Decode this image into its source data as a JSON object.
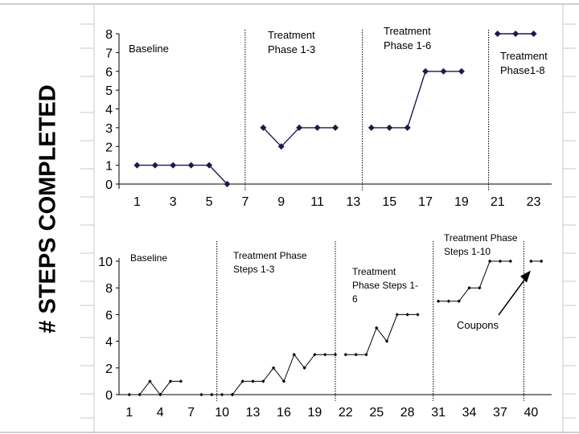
{
  "ylabel": "# STEPS COMPLETED",
  "colors": {
    "top_series": "#1a1a4e",
    "bottom_series": "#000000",
    "frame": "#a0a0a0"
  },
  "chart_data": [
    {
      "type": "line",
      "panel": "top",
      "ylim": [
        0,
        8
      ],
      "yticks": [
        "0",
        "1",
        "2",
        "3",
        "4",
        "5",
        "6",
        "7",
        "8"
      ],
      "xlim": [
        0,
        24
      ],
      "xticks": [
        1,
        3,
        5,
        7,
        9,
        11,
        13,
        15,
        17,
        19,
        21,
        23
      ],
      "xtick_labels": [
        "1",
        "3",
        "5",
        "7",
        "9",
        "11",
        "13",
        "15",
        "17",
        "19",
        "21",
        "23"
      ],
      "phase_lines": [
        7,
        13.5,
        20.5
      ],
      "phases": [
        {
          "lines": [
            "Baseline"
          ],
          "x_start": 0
        },
        {
          "lines": [
            "Treatment",
            "Phase 1-3"
          ],
          "x_start": 7
        },
        {
          "lines": [
            "Treatment",
            "Phase 1-6"
          ],
          "x_start": 13.5
        },
        {
          "lines": [
            "Treatment",
            "Phase1-8"
          ],
          "x_start": 20.5
        }
      ],
      "segments": [
        {
          "x": [
            1,
            2,
            3,
            4,
            5,
            6
          ],
          "y": [
            1,
            1,
            1,
            1,
            1,
            0
          ]
        },
        {
          "x": [
            8,
            9,
            10,
            11,
            12
          ],
          "y": [
            3,
            2,
            3,
            3,
            3
          ]
        },
        {
          "x": [
            14,
            15,
            16,
            17,
            18,
            19
          ],
          "y": [
            3,
            3,
            3,
            6,
            6,
            6
          ]
        },
        {
          "x": [
            21,
            22,
            23
          ],
          "y": [
            8,
            8,
            8
          ]
        }
      ]
    },
    {
      "type": "line",
      "panel": "bottom",
      "ylim": [
        0,
        10
      ],
      "yticks": [
        "0",
        "2",
        "4",
        "6",
        "8",
        "10"
      ],
      "xlim": [
        0,
        42
      ],
      "xticks": [
        1,
        4,
        7,
        10,
        13,
        16,
        19,
        22,
        25,
        28,
        31,
        34,
        37,
        40
      ],
      "xtick_labels": [
        "1",
        "4",
        "7",
        "10",
        "13",
        "16",
        "19",
        "22",
        "25",
        "28",
        "31",
        "34",
        "37",
        "40"
      ],
      "phase_lines": [
        9.5,
        21,
        30.5,
        39.3
      ],
      "phases": [
        {
          "lines": [
            "Baseline"
          ],
          "x_start": 0
        },
        {
          "lines": [
            "Treatment Phase",
            "Steps 1-3"
          ],
          "x_start": 9.5
        },
        {
          "lines": [
            "Treatment",
            "Phase Steps 1-",
            "6"
          ],
          "x_start": 21
        },
        {
          "lines": [
            "Treatment Phase",
            "Steps 1-10"
          ],
          "x_start": 30.5
        }
      ],
      "segments": [
        {
          "x": [
            1,
            2,
            3,
            4,
            5,
            6
          ],
          "y": [
            0,
            0,
            1,
            0,
            1,
            1
          ]
        },
        {
          "x": [
            8,
            9,
            10,
            11
          ],
          "y": [
            0,
            0,
            0,
            0
          ]
        },
        {
          "x": [
            11,
            12,
            13,
            14,
            15,
            16,
            17,
            18,
            19,
            20,
            21
          ],
          "y": [
            0,
            1,
            1,
            1,
            2,
            1,
            3,
            2,
            3,
            3,
            3
          ]
        },
        {
          "x": [
            22,
            23,
            24,
            25,
            26,
            27,
            28,
            29
          ],
          "y": [
            3,
            3,
            3,
            5,
            4,
            6,
            6,
            6
          ]
        },
        {
          "x": [
            31,
            32,
            33,
            34,
            35,
            36,
            37,
            38
          ],
          "y": [
            7,
            7,
            7,
            8,
            8,
            10,
            10,
            10
          ]
        },
        {
          "x": [
            40,
            41
          ],
          "y": [
            10,
            10
          ]
        }
      ],
      "annotation": {
        "text": "Coupons",
        "x": 39.5,
        "y": 9.3
      }
    }
  ]
}
